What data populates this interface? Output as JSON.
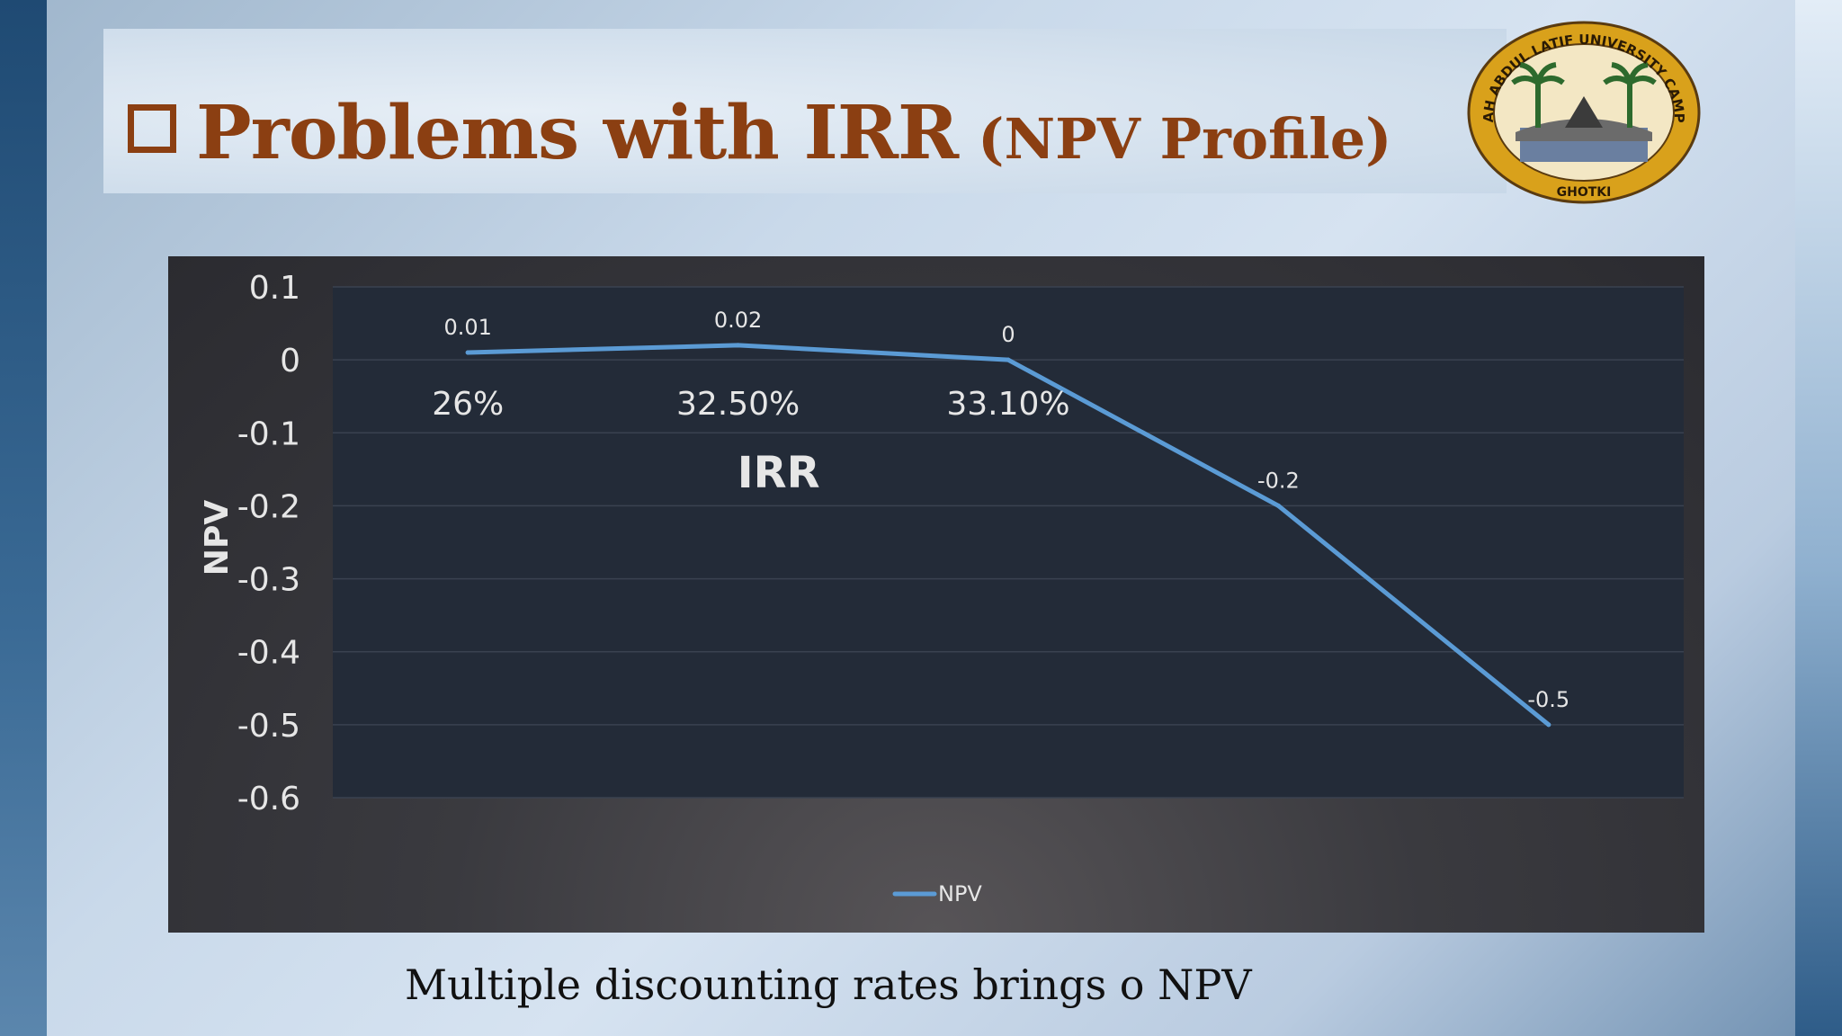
{
  "slide": {
    "title_box": "❑",
    "title_main": "Problems with IRR",
    "title_sub": "(NPV Profile)",
    "caption": "Multiple discounting rates brings o NPV",
    "logo": {
      "top_text": "SHAH ABDUL LATIF UNIVERSITY CAMPUS",
      "bottom_text": "GHOTKI",
      "icon": "university-seal-icon"
    }
  },
  "chart_data": {
    "type": "line",
    "title": "",
    "xlabel": "",
    "ylabel": "NPV",
    "ylim": [
      -0.6,
      0.1
    ],
    "yticks": [
      "0.1",
      "0",
      "-0.1",
      "-0.2",
      "-0.3",
      "-0.4",
      "-0.5",
      "-0.6"
    ],
    "grid": true,
    "legend_position": "bottom",
    "x": [
      1,
      2,
      3,
      4,
      5
    ],
    "series": [
      {
        "name": "NPV",
        "values": [
          0.01,
          0.02,
          0,
          -0.2,
          -0.5
        ],
        "data_labels": [
          "0.01",
          "0.02",
          "0",
          "-0.2",
          "-0.5"
        ],
        "color": "#5b9bd5"
      }
    ],
    "annotations": [
      {
        "text": "26%",
        "x": 1,
        "y": -0.06
      },
      {
        "text": "32.50%",
        "x": 2,
        "y": -0.06
      },
      {
        "text": "33.10%",
        "x": 3,
        "y": -0.06
      },
      {
        "text": "IRR",
        "x": 2.15,
        "y": -0.155
      }
    ],
    "colors": {
      "plot_bg": "#232b38",
      "grid": "#3a4250",
      "text": "#e6e6e6"
    }
  }
}
